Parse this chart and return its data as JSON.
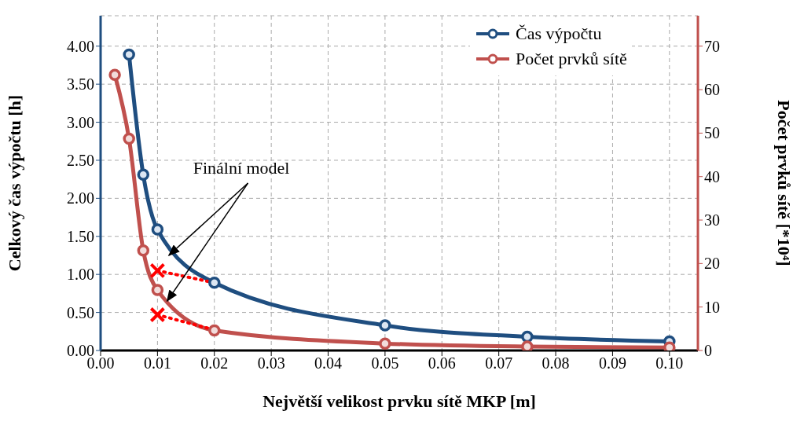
{
  "chart_data": {
    "type": "line",
    "xlabel": "Největší velikost prvku sítě MKP [m]",
    "ylabel": "Celkový čas výpočtu [h]",
    "y2label": "Počet prvků sítě [*10⁴]",
    "annotations": [
      {
        "text": "Finální model",
        "x": 0.012,
        "y": 1.25
      }
    ],
    "xlim": [
      0,
      0.105
    ],
    "xticks": [
      {
        "value": 0,
        "label": "0.00"
      },
      {
        "value": 0.01,
        "label": "0.01"
      },
      {
        "value": 0.02,
        "label": "0.02"
      },
      {
        "value": 0.03,
        "label": "0.03"
      },
      {
        "value": 0.04,
        "label": "0.04"
      },
      {
        "value": 0.05,
        "label": "0.05"
      },
      {
        "value": 0.06,
        "label": "0.06"
      },
      {
        "value": 0.07,
        "label": "0.07"
      },
      {
        "value": 0.08,
        "label": "0.08"
      },
      {
        "value": 0.09,
        "label": "0.09"
      },
      {
        "value": 0.1,
        "label": "0.10"
      }
    ],
    "ylim": [
      0,
      4.4
    ],
    "yticks": [
      {
        "value": 0,
        "label": "0.00"
      },
      {
        "value": 0.5,
        "label": "0.50"
      },
      {
        "value": 1,
        "label": "1.00"
      },
      {
        "value": 1.5,
        "label": "1.50"
      },
      {
        "value": 2,
        "label": "2.00"
      },
      {
        "value": 2.5,
        "label": "2.50"
      },
      {
        "value": 3,
        "label": "3.00"
      },
      {
        "value": 3.5,
        "label": "3.50"
      },
      {
        "value": 4,
        "label": "4.00"
      }
    ],
    "y2lim": [
      0,
      77
    ],
    "y2ticks": [
      0,
      10,
      20,
      30,
      40,
      50,
      60,
      70
    ],
    "grid": true,
    "legend": "top right",
    "marker": "circle",
    "line_style": "solid",
    "series": [
      {
        "name": "Čas výpočtu",
        "color": "#1f4e80",
        "x": [
          0.005,
          0.0075,
          0.01,
          0.02,
          0.05,
          0.075,
          0.1
        ],
        "values": [
          3.89,
          2.31,
          1.59,
          0.89,
          0.33,
          0.18,
          0.12
        ]
      },
      {
        "name": "Počet prvků sítě",
        "color": "#c0504d",
        "axis": "y2",
        "x": [
          0.0025,
          0.005,
          0.0075,
          0.01,
          0.02,
          0.05,
          0.075,
          0.1
        ],
        "values": [
          63.4,
          48.7,
          23.0,
          13.9,
          4.6,
          1.6,
          0.9,
          0.7
        ]
      },
      {
        "type": "scatter",
        "color": "#ff0000",
        "marker": "cross",
        "x": [
          0.01,
          0.01
        ],
        "values": [
          1.05,
          0.47
        ]
      },
      {
        "color": "#ff0000",
        "marker": "none",
        "line_style": "dotted",
        "x": [
          0.01,
          0.02
        ],
        "values": [
          1.05,
          0.89
        ]
      },
      {
        "color": "#ff0000",
        "marker": "none",
        "line_style": "dotted",
        "x": [
          0.01,
          0.02
        ],
        "values": [
          0.47,
          0.27
        ]
      }
    ]
  }
}
